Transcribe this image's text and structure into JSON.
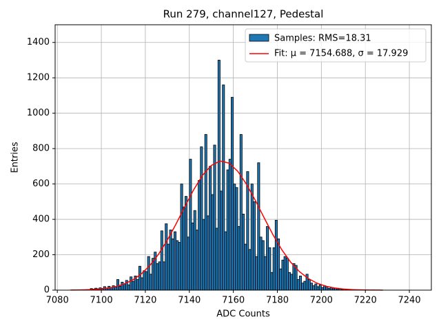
{
  "chart_data": {
    "type": "histogram",
    "title": "Run 279, channel127, Pedestal",
    "xlabel": "ADC Counts",
    "ylabel": "Entries",
    "xlim": [
      7079,
      7250
    ],
    "ylim": [
      0,
      1500
    ],
    "xticks": [
      7080,
      7100,
      7120,
      7140,
      7160,
      7180,
      7200,
      7220,
      7240
    ],
    "yticks": [
      0,
      200,
      400,
      600,
      800,
      1000,
      1200,
      1400
    ],
    "grid": true,
    "legend": "upper right",
    "bins": [
      7086,
      7087,
      7088,
      7089,
      7090,
      7091,
      7092,
      7093,
      7094,
      7095,
      7096,
      7097,
      7098,
      7099,
      7100,
      7101,
      7102,
      7103,
      7104,
      7105,
      7106,
      7107,
      7108,
      7109,
      7110,
      7111,
      7112,
      7113,
      7114,
      7115,
      7116,
      7117,
      7118,
      7119,
      7120,
      7121,
      7122,
      7123,
      7124,
      7125,
      7126,
      7127,
      7128,
      7129,
      7130,
      7131,
      7132,
      7133,
      7134,
      7135,
      7136,
      7137,
      7138,
      7139,
      7140,
      7141,
      7142,
      7143,
      7144,
      7145,
      7146,
      7147,
      7148,
      7149,
      7150,
      7151,
      7152,
      7153,
      7154,
      7155,
      7156,
      7157,
      7158,
      7159,
      7160,
      7161,
      7162,
      7163,
      7164,
      7165,
      7166,
      7167,
      7168,
      7169,
      7170,
      7171,
      7172,
      7173,
      7174,
      7175,
      7176,
      7177,
      7178,
      7179,
      7180,
      7181,
      7182,
      7183,
      7184,
      7185,
      7186,
      7187,
      7188,
      7189,
      7190,
      7191,
      7192,
      7193,
      7194,
      7195,
      7196,
      7197,
      7198,
      7199,
      7200,
      7201,
      7202,
      7203,
      7204,
      7205,
      7206,
      7207,
      7208,
      7209,
      7210,
      7211,
      7212,
      7213,
      7214,
      7215,
      7216,
      7217,
      7218,
      7219,
      7220,
      7221,
      7222,
      7223,
      7224,
      7225,
      7226,
      7227,
      7228
    ],
    "series": [
      {
        "name": "Samples: RMS=18.31",
        "color": "#1f77b4",
        "edgecolor": "#000000",
        "values": [
          0,
          1,
          0,
          1,
          2,
          1,
          2,
          3,
          2,
          9,
          6,
          11,
          8,
          13,
          10,
          20,
          12,
          22,
          15,
          25,
          18,
          60,
          22,
          45,
          35,
          55,
          30,
          75,
          50,
          80,
          60,
          135,
          70,
          110,
          105,
          190,
          90,
          180,
          215,
          150,
          160,
          335,
          160,
          375,
          260,
          340,
          290,
          330,
          280,
          270,
          600,
          470,
          530,
          300,
          740,
          380,
          450,
          340,
          620,
          810,
          400,
          880,
          420,
          700,
          540,
          820,
          350,
          1300,
          560,
          1160,
          330,
          680,
          740,
          1090,
          600,
          580,
          360,
          880,
          430,
          260,
          670,
          230,
          600,
          500,
          190,
          720,
          300,
          280,
          190,
          360,
          240,
          100,
          240,
          395,
          290,
          120,
          170,
          190,
          180,
          100,
          90,
          150,
          140,
          60,
          80,
          40,
          50,
          90,
          60,
          40,
          25,
          35,
          20,
          30,
          15,
          25,
          20,
          10,
          15,
          8,
          12,
          5,
          8,
          4,
          6,
          3,
          4,
          2,
          3,
          1,
          2,
          1,
          1,
          0,
          1,
          0,
          0,
          1,
          0,
          0,
          0,
          0
        ]
      }
    ],
    "fit_line": {
      "type": "line",
      "name": "Fit: μ = 7154.688, σ = 17.929",
      "color": "#ff0000",
      "x": [
        7086,
        7090,
        7094,
        7098,
        7102,
        7106,
        7110,
        7114,
        7118,
        7122,
        7126,
        7130,
        7134,
        7138,
        7142,
        7146,
        7150,
        7154,
        7158,
        7162,
        7166,
        7170,
        7174,
        7178,
        7182,
        7186,
        7190,
        7194,
        7198,
        7202,
        7206,
        7210,
        7214,
        7218,
        7222,
        7226,
        7228
      ],
      "values": [
        0.5,
        1.1,
        2.4,
        4.9,
        9.7,
        18.2,
        32.7,
        55.6,
        89.9,
        138.5,
        202.9,
        282.9,
        375,
        473,
        568,
        649,
        705,
        730,
        718,
        672,
        598,
        507,
        409,
        313.5,
        228.9,
        158.9,
        105,
        66,
        39.4,
        22.4,
        12.2,
        6.3,
        3.1,
        1.4,
        0.6,
        0.3,
        0.2
      ]
    }
  }
}
